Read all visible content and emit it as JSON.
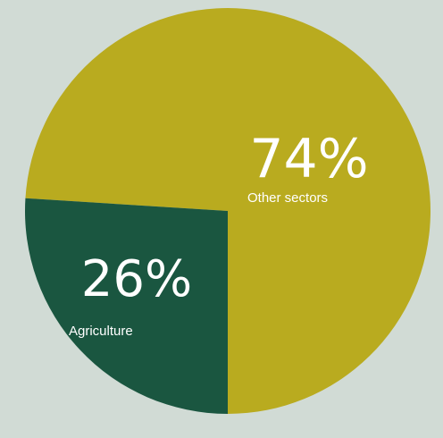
{
  "chart_data": {
    "type": "pie",
    "slices": [
      {
        "label": "Other sectors",
        "value": 74,
        "value_label": "74%",
        "color": "#b9ab1f"
      },
      {
        "label": "Agriculture",
        "value": 26,
        "value_label": "26%",
        "color": "#1a5640"
      }
    ],
    "background": "#d1dbd5",
    "legend": "none"
  }
}
